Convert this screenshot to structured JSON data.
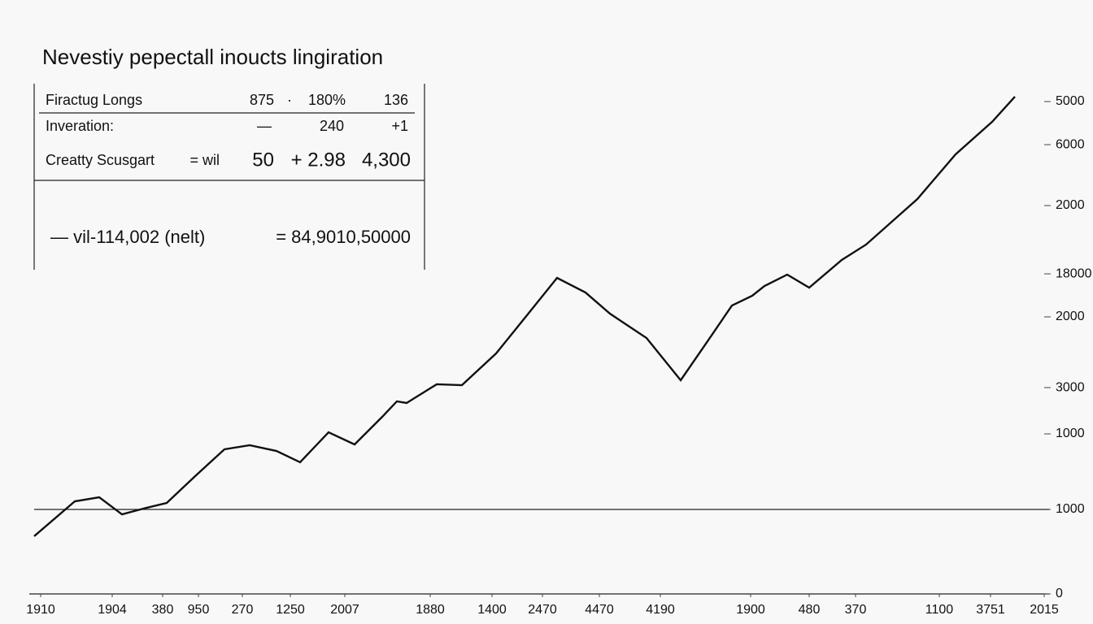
{
  "chart_data": {
    "type": "line",
    "title": "Nevestiy pepectall inoucts lingiration",
    "table": {
      "rows": [
        [
          "Firactug Longs",
          "875",
          "·",
          "180%",
          "136"
        ],
        [
          "Inveration:",
          "—",
          "240",
          "+1"
        ],
        [
          "Creatty Scusgart",
          "= wil",
          "50",
          "+ 2.98",
          "4,300"
        ],
        [
          "— vil-114,002 (nelt)",
          "= 84,9010,50000"
        ]
      ]
    },
    "x": [
      0,
      50,
      80,
      108,
      138,
      163,
      198,
      234,
      265,
      298,
      327,
      362,
      394,
      428,
      446,
      458,
      495,
      526,
      568,
      606,
      643,
      678,
      708,
      753,
      795,
      828,
      858,
      883,
      898,
      926,
      953,
      993,
      1023,
      1086,
      1133,
      1178,
      1206
    ],
    "series": [
      {
        "color": "#111111",
        "values": [
          683,
          1096,
          1144,
          942,
          1019,
          1077,
          1394,
          1712,
          1760,
          1692,
          1558,
          1913,
          1769,
          2096,
          2279,
          2260,
          2481,
          2471,
          2846,
          3298,
          3740,
          3567,
          3317,
          3029,
          2529,
          2990,
          3413,
          3529,
          3644,
          3779,
          3625,
          3952,
          4135,
          4673,
          5202,
          5587,
          5885
        ]
      }
    ],
    "xlim": [
      0,
      1248
    ],
    "xticks": [
      {
        "value": 8,
        "label": "1910"
      },
      {
        "value": 96,
        "label": "1904"
      },
      {
        "value": 158,
        "label": "380"
      },
      {
        "value": 202,
        "label": "950"
      },
      {
        "value": 256,
        "label": "270"
      },
      {
        "value": 315,
        "label": "1250"
      },
      {
        "value": 382,
        "label": "2007"
      },
      {
        "value": 487,
        "label": "1880"
      },
      {
        "value": 563,
        "label": "1400"
      },
      {
        "value": 625,
        "label": "2470"
      },
      {
        "value": 695,
        "label": "4470"
      },
      {
        "value": 770,
        "label": "4190"
      },
      {
        "value": 881,
        "label": "1900"
      },
      {
        "value": 953,
        "label": "480"
      },
      {
        "value": 1010,
        "label": "370"
      },
      {
        "value": 1113,
        "label": "1100"
      },
      {
        "value": 1176,
        "label": "3751"
      },
      {
        "value": 1242,
        "label": "2015"
      }
    ],
    "ylim": [
      0,
      6000
    ],
    "yticks": [
      {
        "value": 5827,
        "label": "5000"
      },
      {
        "value": 5317,
        "label": "6000"
      },
      {
        "value": 4596,
        "label": "2000"
      },
      {
        "value": 3788,
        "label": "18000"
      },
      {
        "value": 3279,
        "label": "2000"
      },
      {
        "value": 2442,
        "label": "3000"
      },
      {
        "value": 1894,
        "label": "1000"
      },
      1000,
      0
    ],
    "hline": 1000
  }
}
